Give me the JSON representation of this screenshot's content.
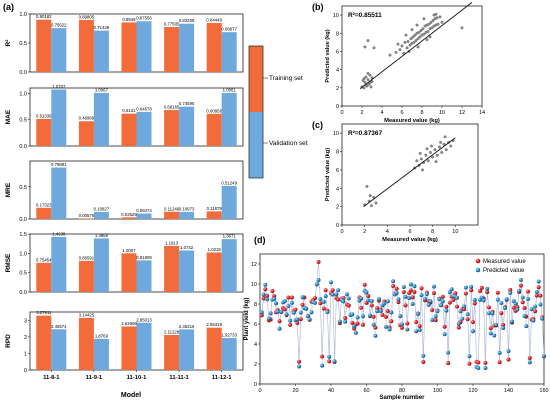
{
  "chart_data": [
    {
      "id": "a",
      "panel_label": "(a)",
      "type": "bar",
      "categories": [
        "11-8-1",
        "11-9-1",
        "11-10-1",
        "11-11-1",
        "11-12-1"
      ],
      "xlabel": "Model",
      "legend": {
        "placement": "right",
        "entries": [
          "Training set",
          "Validation set"
        ]
      },
      "colors": {
        "train": "#F26B3A",
        "valid": "#6FA8DC"
      },
      "metrics": [
        {
          "name": "R2",
          "ylabel": "R²",
          "ylim": [
            0,
            1.0
          ],
          "ticks": [
            0,
            0.5,
            1.0
          ],
          "series": [
            {
              "name": "Training set",
              "values": [
                0.90182,
                0.89805,
                0.8549,
                0.77505,
                0.84449
              ],
              "labels": [
                "0.90182",
                "0.89805",
                "0.8549",
                "0.77505",
                "0.84449"
              ]
            },
            {
              "name": "Validation set",
              "values": [
                0.75622,
                0.71439,
                0.87556,
                0.83208,
                0.68677
              ],
              "labels": [
                "0.75622",
                "0.71439",
                "0.87556",
                "0.83208",
                "0.68677"
              ]
            }
          ]
        },
        {
          "name": "MAE",
          "ylabel": "MAE",
          "ylim": [
            0,
            1.1
          ],
          "ticks": [
            0,
            0.5,
            1.0
          ],
          "series": [
            {
              "name": "Training set",
              "values": [
                0.51339,
                0.46969,
                0.6131,
                0.68165,
                0.60958
              ],
              "labels": [
                "0.51339",
                "0.46969",
                "0.6131",
                "0.68165",
                "0.60958"
              ]
            },
            {
              "name": "Validation set",
              "values": [
                1.0707,
                1.0067,
                0.64678,
                0.74595,
                1.0061
              ],
              "labels": [
                "1.0707",
                "1.0067",
                "0.64678",
                "0.74595",
                "1.0061"
              ]
            }
          ]
        },
        {
          "name": "MRE",
          "ylabel": "MRE",
          "ylim": [
            0,
            0.9
          ],
          "ticks": [
            0,
            0.5
          ],
          "series": [
            {
              "name": "Training set",
              "values": [
                0.17323,
                0.00576,
                0.02529,
                0.11246,
                0.11879
              ],
              "labels": [
                "0.17323",
                "0.00576",
                "0.02529",
                "0.11246",
                "0.11879"
              ]
            },
            {
              "name": "Validation set",
              "values": [
                0.79881,
                0.10827,
                0.08474,
                0.10973,
                0.51249
              ],
              "labels": [
                "0.79881",
                "0.10827",
                "0.08474",
                "0.10973",
                "0.51249"
              ]
            }
          ]
        },
        {
          "name": "RMSE",
          "ylabel": "RMSE",
          "ylim": [
            0,
            1.5
          ],
          "ticks": [
            0,
            0.5,
            1.0,
            1.5
          ],
          "series": [
            {
              "name": "Training set",
              "values": [
                0.75454,
                0.80591,
                1.0007,
                1.1913,
                1.0219
              ],
              "labels": [
                "0.75454",
                "0.80591",
                "1.0007",
                "1.1913",
                "1.0219"
              ]
            },
            {
              "name": "Validation set",
              "values": [
                1.4238,
                1.3868,
                0.81809,
                1.0742,
                1.3671
              ],
              "labels": [
                "1.4238",
                "1.3868",
                "0.81809",
                "1.0742",
                "1.3671"
              ]
            }
          ]
        },
        {
          "name": "RPD",
          "ylabel": "RPD",
          "ylim": [
            0,
            3.5
          ],
          "ticks": [
            0,
            1,
            2,
            3
          ],
          "series": [
            {
              "name": "Training set",
              "values": [
                3.27911,
                3.14425,
                2.62608,
                2.11228,
                2.55318
              ],
              "labels": [
                "3.27911",
                "3.14425",
                "2.62608",
                "2.11228",
                "2.55318"
              ]
            },
            {
              "name": "Validation set",
              "values": [
                2.45574,
                1.8769,
                2.85013,
                2.45316,
                1.92733
              ],
              "labels": [
                "2.45574",
                "1.8769",
                "2.85013",
                "2.45316",
                "1.92733"
              ]
            }
          ]
        }
      ]
    },
    {
      "id": "b",
      "panel_label": "(b)",
      "type": "scatter",
      "annotation": "R²=0.85511",
      "xlabel": "Measured value (kg)",
      "ylabel": "Predicted value (kg)",
      "xlim": [
        0,
        14
      ],
      "ylim": [
        0,
        11
      ],
      "xticks": [
        0,
        2,
        4,
        6,
        8,
        10,
        12,
        14
      ],
      "yticks": [
        0,
        2,
        4,
        6,
        8,
        10
      ],
      "fit_line": [
        [
          1.8,
          1.9
        ],
        [
          13.0,
          11.4
        ]
      ],
      "points": [
        [
          2.0,
          2.1
        ],
        [
          2.1,
          2.8
        ],
        [
          2.2,
          2.0
        ],
        [
          2.3,
          2.6
        ],
        [
          2.4,
          3.2
        ],
        [
          2.5,
          2.2
        ],
        [
          2.6,
          2.9
        ],
        [
          2.7,
          2.4
        ],
        [
          2.8,
          3.4
        ],
        [
          2.9,
          2.1
        ],
        [
          3.0,
          2.7
        ],
        [
          2.2,
          3.0
        ],
        [
          2.4,
          2.3
        ],
        [
          2.6,
          3.6
        ],
        [
          2.8,
          2.6
        ],
        [
          3.0,
          3.1
        ],
        [
          2.3,
          6.5
        ],
        [
          2.6,
          7.2
        ],
        [
          3.2,
          6.4
        ],
        [
          4.8,
          5.6
        ],
        [
          5.4,
          5.9
        ],
        [
          5.8,
          6.2
        ],
        [
          6.0,
          6.6
        ],
        [
          6.2,
          5.8
        ],
        [
          6.3,
          7.0
        ],
        [
          6.5,
          6.4
        ],
        [
          6.6,
          7.1
        ],
        [
          6.8,
          6.7
        ],
        [
          6.9,
          7.4
        ],
        [
          7.0,
          6.9
        ],
        [
          7.1,
          7.6
        ],
        [
          7.2,
          7.0
        ],
        [
          7.3,
          7.8
        ],
        [
          7.4,
          7.2
        ],
        [
          7.5,
          8.0
        ],
        [
          7.6,
          7.4
        ],
        [
          7.7,
          8.1
        ],
        [
          7.8,
          7.6
        ],
        [
          7.9,
          8.3
        ],
        [
          8.0,
          7.8
        ],
        [
          8.1,
          8.5
        ],
        [
          8.2,
          7.9
        ],
        [
          8.3,
          8.8
        ],
        [
          8.4,
          8.1
        ],
        [
          8.5,
          8.9
        ],
        [
          8.6,
          8.2
        ],
        [
          8.7,
          9.0
        ],
        [
          8.8,
          8.5
        ],
        [
          8.9,
          9.2
        ],
        [
          9.0,
          8.6
        ],
        [
          9.1,
          9.4
        ],
        [
          9.2,
          8.8
        ],
        [
          9.3,
          9.6
        ],
        [
          9.4,
          8.9
        ],
        [
          9.5,
          9.7
        ],
        [
          9.6,
          9.0
        ],
        [
          9.8,
          9.8
        ],
        [
          10.0,
          9.2
        ],
        [
          6.4,
          7.8
        ],
        [
          7.0,
          8.4
        ],
        [
          7.6,
          6.5
        ],
        [
          8.2,
          9.6
        ],
        [
          8.8,
          7.6
        ],
        [
          9.4,
          10.1
        ],
        [
          5.6,
          6.8
        ],
        [
          6.7,
          6.0
        ],
        [
          7.5,
          8.9
        ],
        [
          8.5,
          7.3
        ],
        [
          9.2,
          10.0
        ],
        [
          12.0,
          8.6
        ]
      ]
    },
    {
      "id": "c",
      "panel_label": "(c)",
      "type": "scatter",
      "annotation": "R²=0.87367",
      "xlabel": "Measured value (kg)",
      "ylabel": "Predicted value (kg)",
      "xlim": [
        0,
        12
      ],
      "ylim": [
        0,
        11
      ],
      "xticks": [
        0,
        2,
        4,
        6,
        8,
        10
      ],
      "yticks": [
        0,
        2,
        4,
        6,
        8,
        10
      ],
      "fit_line": [
        [
          1.9,
          2.0
        ],
        [
          10.0,
          9.5
        ]
      ],
      "points": [
        [
          2.0,
          2.2
        ],
        [
          2.2,
          4.2
        ],
        [
          2.4,
          2.6
        ],
        [
          2.6,
          2.1
        ],
        [
          2.8,
          3.0
        ],
        [
          3.0,
          2.4
        ],
        [
          2.5,
          3.2
        ],
        [
          6.4,
          6.2
        ],
        [
          6.6,
          7.0
        ],
        [
          6.8,
          6.5
        ],
        [
          7.0,
          7.2
        ],
        [
          7.2,
          6.8
        ],
        [
          7.4,
          7.6
        ],
        [
          7.6,
          7.0
        ],
        [
          7.8,
          7.9
        ],
        [
          8.0,
          7.4
        ],
        [
          8.2,
          8.2
        ],
        [
          8.4,
          7.6
        ],
        [
          8.6,
          8.5
        ],
        [
          8.8,
          7.9
        ],
        [
          9.0,
          8.8
        ],
        [
          9.2,
          8.2
        ],
        [
          9.4,
          9.0
        ],
        [
          9.6,
          8.6
        ],
        [
          9.8,
          9.2
        ],
        [
          7.1,
          6.0
        ],
        [
          7.9,
          8.6
        ],
        [
          8.7,
          9.0
        ],
        [
          6.9,
          7.8
        ],
        [
          8.3,
          6.9
        ],
        [
          9.1,
          9.6
        ],
        [
          7.5,
          8.3
        ]
      ]
    },
    {
      "id": "d",
      "panel_label": "(d)",
      "type": "line",
      "xlabel": "Sample number",
      "ylabel": "Plant yield (kg)",
      "xlim": [
        0,
        160
      ],
      "ylim": [
        0,
        13
      ],
      "xticks": [
        0,
        20,
        40,
        60,
        80,
        100,
        120,
        140,
        160
      ],
      "yticks": [
        0,
        2,
        4,
        6,
        8,
        10,
        12
      ],
      "legend": {
        "placement": "top-right",
        "entries": [
          "Measured value",
          "Predicted value"
        ]
      },
      "colors": {
        "measured": "#E0242B",
        "predicted": "#2E8BC9",
        "line": "#A8B4D6"
      },
      "n_samples": 160
    }
  ]
}
